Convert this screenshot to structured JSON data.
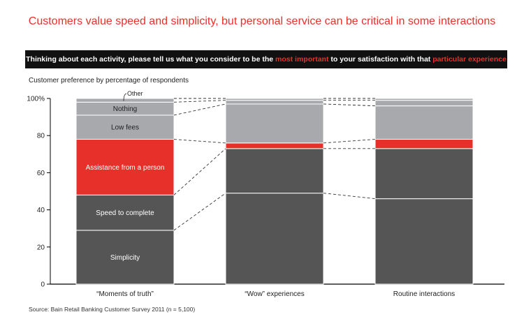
{
  "title": "Customers value speed and simplicity, but personal service can be critical in some interactions",
  "banner": {
    "part1": "Thinking about each activity, please tell us what you consider to be the ",
    "hl1": "most important",
    "part2": " to your satisfaction with that ",
    "hl2": "particular experience"
  },
  "subtitle": "Customer preference by percentage of respondents",
  "source": "Source: Bain Retail Banking Customer Survey 2011 (n = 5,100)",
  "colors": {
    "accent": "#e8302a",
    "dark": "#555555",
    "light": "#a7a9ac",
    "banner": "#111111"
  },
  "chart_data": {
    "type": "bar",
    "stacked": true,
    "categories": [
      "“Moments of truth”",
      "“Wow” experiences",
      "Routine interactions"
    ],
    "y_tick_labels": [
      "0",
      "20",
      "40",
      "60",
      "80",
      "100%"
    ],
    "ylim": [
      0,
      100
    ],
    "series": [
      {
        "name": "Simplicity",
        "color": "#555555",
        "values": [
          29,
          49,
          46
        ]
      },
      {
        "name": "Speed to complete",
        "color": "#555555",
        "values": [
          19,
          24,
          27
        ]
      },
      {
        "name": "Assistance from a person",
        "color": "#e8302a",
        "values": [
          30,
          3,
          5
        ]
      },
      {
        "name": "Low fees",
        "color": "#a7a9ac",
        "values": [
          13,
          21,
          18
        ]
      },
      {
        "name": "Nothing",
        "color": "#a7a9ac",
        "values": [
          7,
          2,
          3
        ]
      },
      {
        "name": "Other",
        "color": "#a7a9ac",
        "values": [
          2,
          1,
          1
        ]
      }
    ]
  }
}
